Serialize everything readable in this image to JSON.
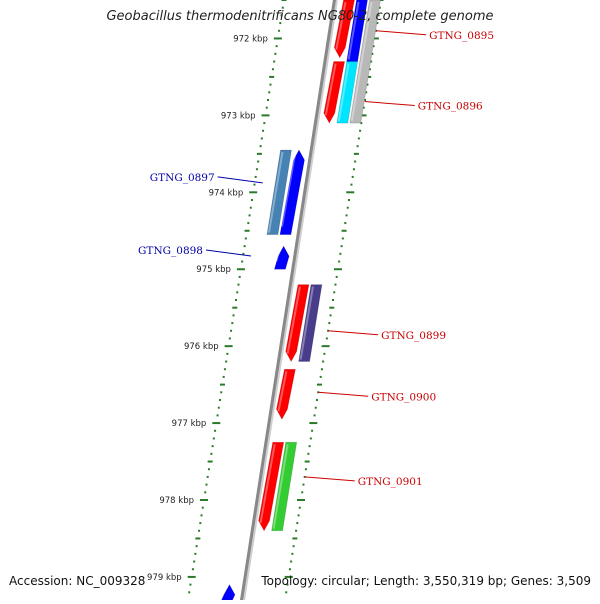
{
  "title": "Geobacillus thermodenitrificans NG80-2, complete genome",
  "footer": {
    "accession": "Accession: NC_009328",
    "summary": "Topology: circular; Length: 3,550,319 bp; Genes: 3,509"
  },
  "scale": {
    "start_kbp": 971.5,
    "end_kbp": 979.3,
    "tick_labels": [
      {
        "kbp": 972,
        "label": "972 kbp"
      },
      {
        "kbp": 973,
        "label": "973 kbp"
      },
      {
        "kbp": 974,
        "label": "974 kbp"
      },
      {
        "kbp": 975,
        "label": "975 kbp"
      },
      {
        "kbp": 976,
        "label": "976 kbp"
      },
      {
        "kbp": 977,
        "label": "977 kbp"
      },
      {
        "kbp": 978,
        "label": "978 kbp"
      },
      {
        "kbp": 979,
        "label": "979 kbp"
      }
    ]
  },
  "colors": {
    "forward_label": "#cc0000",
    "reverse_label": "#0000aa",
    "backbone": "#888888",
    "tick_green": "#2a7a2a"
  },
  "genes": [
    {
      "strand": "-",
      "start_kbp": 971.5,
      "end_kbp": 972.25,
      "color": "#ff0000",
      "lane": 1,
      "arrow": true
    },
    {
      "strand": "-",
      "start_kbp": 972.3,
      "end_kbp": 973.1,
      "color": "#ff0000",
      "lane": 1,
      "arrow": true
    },
    {
      "strand": "-",
      "start_kbp": 971.5,
      "end_kbp": 972.3,
      "color": "#0000ff",
      "lane": 2,
      "arrow": false
    },
    {
      "strand": "-",
      "start_kbp": 972.3,
      "end_kbp": 973.1,
      "color": "#00e5ff",
      "lane": 2,
      "arrow": false
    },
    {
      "strand": "-",
      "start_kbp": 971.5,
      "end_kbp": 973.1,
      "color": "#b8b8b8",
      "lane": 3,
      "arrow": false
    },
    {
      "strand": "+",
      "start_kbp": 973.45,
      "end_kbp": 974.55,
      "color": "#4682b4",
      "lane": 2,
      "arrow": false
    },
    {
      "strand": "+",
      "start_kbp": 973.45,
      "end_kbp": 974.55,
      "color": "#0000ff",
      "lane": 1,
      "arrow": true
    },
    {
      "strand": "+",
      "start_kbp": 974.7,
      "end_kbp": 975.0,
      "color": "#0000ff",
      "lane": 1,
      "arrow": true
    },
    {
      "strand": "-",
      "start_kbp": 975.2,
      "end_kbp": 976.2,
      "color": "#ff0000",
      "lane": 1,
      "arrow": true
    },
    {
      "strand": "-",
      "start_kbp": 975.2,
      "end_kbp": 976.2,
      "color": "#483d8b",
      "lane": 2,
      "arrow": false
    },
    {
      "strand": "-",
      "start_kbp": 976.3,
      "end_kbp": 976.95,
      "color": "#ff0000",
      "lane": 1,
      "arrow": true
    },
    {
      "strand": "-",
      "start_kbp": 977.25,
      "end_kbp": 978.4,
      "color": "#ff0000",
      "lane": 1,
      "arrow": true
    },
    {
      "strand": "-",
      "start_kbp": 977.25,
      "end_kbp": 978.4,
      "color": "#33cc33",
      "lane": 2,
      "arrow": false
    },
    {
      "strand": "+",
      "start_kbp": 979.1,
      "end_kbp": 979.3,
      "color": "#0000ff",
      "lane": 1,
      "arrow": true
    }
  ],
  "gene_labels": [
    {
      "name": "GTNG_0895",
      "kbp": 971.9,
      "side": "right"
    },
    {
      "name": "GTNG_0896",
      "kbp": 972.82,
      "side": "right"
    },
    {
      "name": "GTNG_0897",
      "kbp": 973.8,
      "side": "left"
    },
    {
      "name": "GTNG_0898",
      "kbp": 974.75,
      "side": "left"
    },
    {
      "name": "GTNG_0899",
      "kbp": 975.8,
      "side": "right"
    },
    {
      "name": "GTNG_0900",
      "kbp": 976.6,
      "side": "right"
    },
    {
      "name": "GTNG_0901",
      "kbp": 977.7,
      "side": "right"
    }
  ]
}
